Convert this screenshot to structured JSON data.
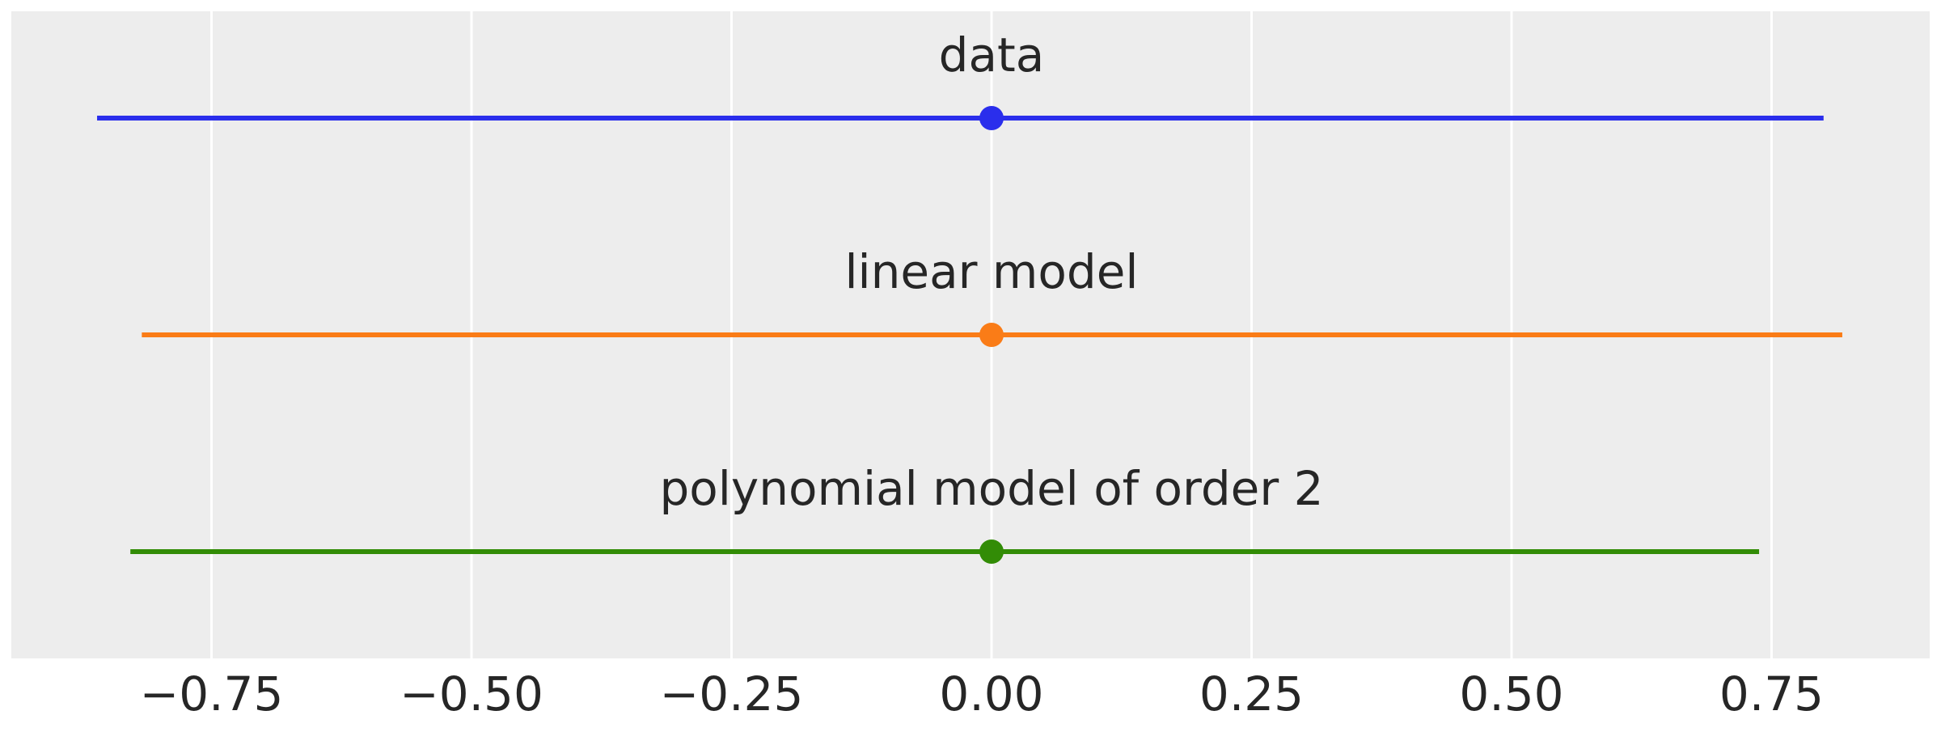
{
  "chart_data": {
    "type": "interval",
    "title": "",
    "xlabel": "",
    "ylabel": "",
    "xlim": [
      -0.9,
      0.9
    ],
    "grid": true,
    "legend": "none",
    "background_color": "#EDEDED",
    "grid_color": "#FFFFFF",
    "x_ticks": [
      -0.75,
      -0.5,
      -0.25,
      0.0,
      0.25,
      0.5,
      0.75
    ],
    "x_tick_labels": [
      "−0.75",
      "−0.50",
      "−0.25",
      "0.00",
      "0.25",
      "0.50",
      "0.75"
    ],
    "series": [
      {
        "name": "data",
        "low": -0.86,
        "high": 0.8,
        "point": 0.0,
        "color": "#2A2EEC"
      },
      {
        "name": "linear model",
        "low": -0.817,
        "high": 0.818,
        "point": 0.0,
        "color": "#FA7C17"
      },
      {
        "name": "polynomial model of order 2",
        "low": -0.828,
        "high": 0.738,
        "point": 0.0,
        "color": "#328C06"
      }
    ]
  }
}
